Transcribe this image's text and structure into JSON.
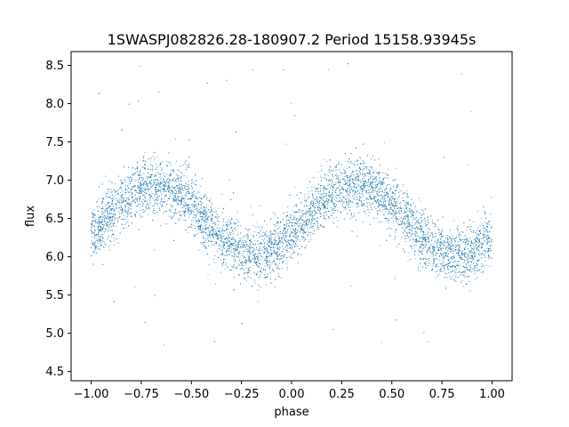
{
  "chart_data": {
    "type": "scatter",
    "title": "1SWASPJ082826.28-180907.2 Period 15158.93945s",
    "xlabel": "phase",
    "ylabel": "flux",
    "xlim": [
      -1.1,
      1.1
    ],
    "ylim": [
      4.38,
      8.68
    ],
    "x_ticks": [
      -1.0,
      -0.75,
      -0.5,
      -0.25,
      0.0,
      0.25,
      0.5,
      0.75,
      1.0
    ],
    "x_tick_labels": [
      "−1.00",
      "−0.75",
      "−0.50",
      "−0.25",
      "0.00",
      "0.25",
      "0.50",
      "0.75",
      "1.00"
    ],
    "y_ticks": [
      4.5,
      5.0,
      5.5,
      6.0,
      6.5,
      7.0,
      7.5,
      8.0,
      8.5
    ],
    "y_tick_labels": [
      "4.5",
      "5.0",
      "5.5",
      "6.0",
      "6.5",
      "7.0",
      "7.5",
      "8.0",
      "8.5"
    ],
    "grid": false,
    "marker_color": "#1f77b4",
    "series": [
      {
        "phase_range": [
          -1.0,
          1.0
        ],
        "model": "sinusoid",
        "mean_flux": 6.48,
        "amplitude": 0.46,
        "max_phase": [
          -0.68,
          0.32
        ],
        "min_phase": [
          -0.18,
          0.82
        ],
        "scatter_sigma": 0.18,
        "outlier_range": [
          4.6,
          8.55
        ],
        "points": [
          [
            -1.0,
            6.38
          ],
          [
            -0.95,
            6.55
          ],
          [
            -0.9,
            6.66
          ],
          [
            -0.85,
            6.72
          ],
          [
            -0.8,
            6.84
          ],
          [
            -0.75,
            6.9
          ],
          [
            -0.7,
            6.94
          ],
          [
            -0.65,
            6.93
          ],
          [
            -0.6,
            6.9
          ],
          [
            -0.55,
            6.82
          ],
          [
            -0.5,
            6.72
          ],
          [
            -0.45,
            6.6
          ],
          [
            -0.4,
            6.45
          ],
          [
            -0.35,
            6.32
          ],
          [
            -0.3,
            6.2
          ],
          [
            -0.25,
            6.08
          ],
          [
            -0.2,
            6.02
          ],
          [
            -0.15,
            6.0
          ],
          [
            -0.1,
            6.06
          ],
          [
            -0.05,
            6.15
          ],
          [
            0.0,
            6.25
          ],
          [
            0.05,
            6.38
          ],
          [
            0.1,
            6.5
          ],
          [
            0.15,
            6.62
          ],
          [
            0.2,
            6.74
          ],
          [
            0.25,
            6.84
          ],
          [
            0.3,
            6.92
          ],
          [
            0.35,
            6.95
          ],
          [
            0.4,
            6.92
          ],
          [
            0.45,
            6.86
          ],
          [
            0.5,
            6.78
          ],
          [
            0.55,
            6.66
          ],
          [
            0.6,
            6.52
          ],
          [
            0.65,
            6.38
          ],
          [
            0.7,
            6.25
          ],
          [
            0.75,
            6.12
          ],
          [
            0.8,
            6.04
          ],
          [
            0.85,
            6.02
          ],
          [
            0.9,
            6.08
          ],
          [
            0.95,
            6.16
          ],
          [
            1.0,
            6.26
          ]
        ]
      }
    ]
  }
}
